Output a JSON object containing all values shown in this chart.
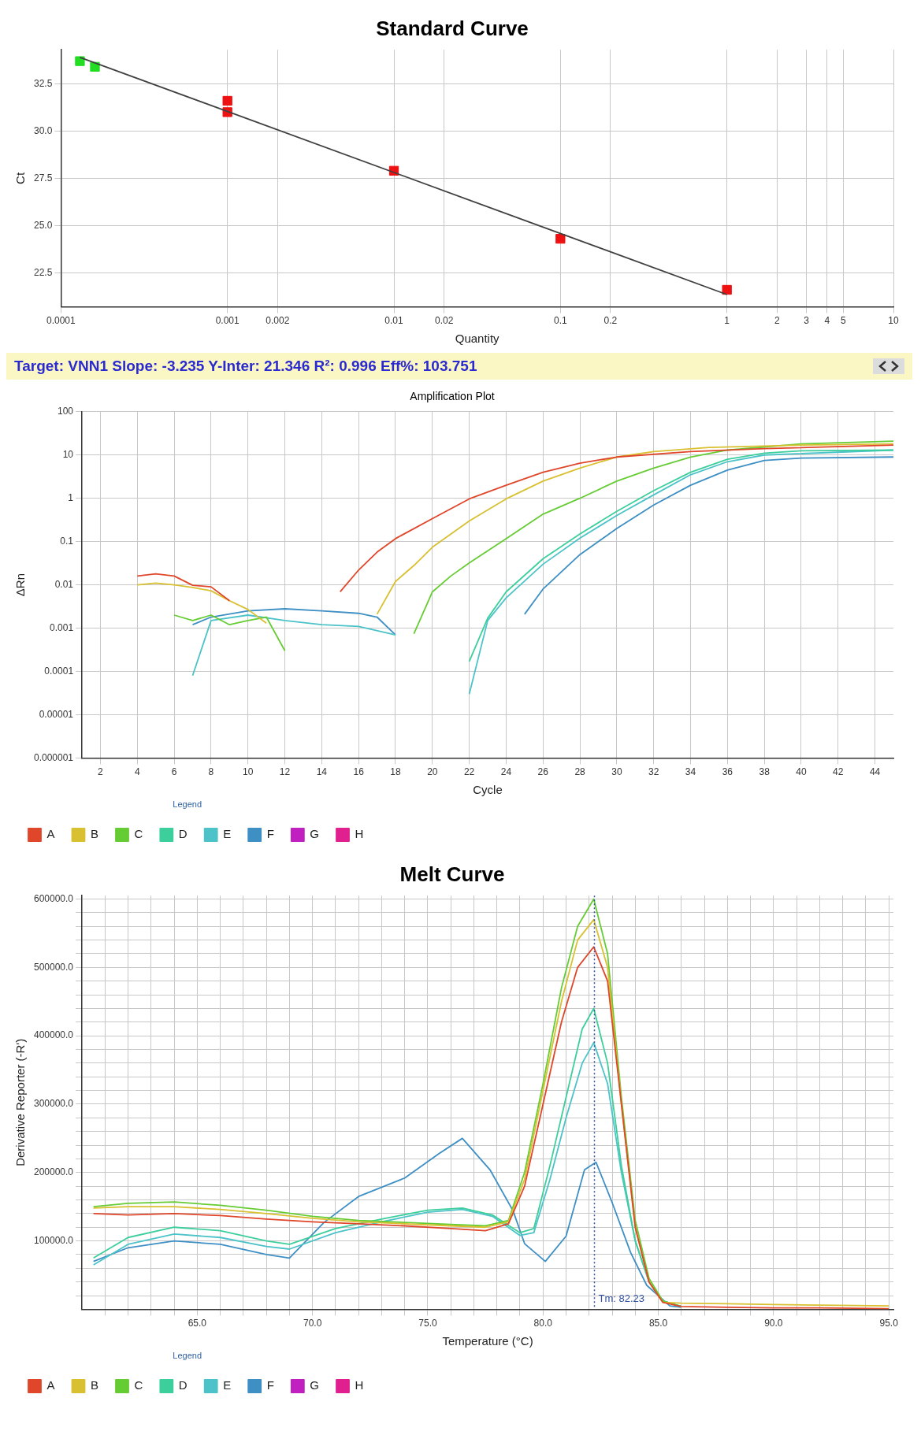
{
  "chart_data": [
    {
      "type": "scatter",
      "title": "Standard Curve",
      "xlabel": "Quantity",
      "ylabel": "Ct",
      "log": "x",
      "grid": true,
      "xlim": [
        0.0001,
        10
      ],
      "xticks": [
        0.0001,
        0.001,
        0.002,
        0.01,
        0.02,
        0.1,
        0.2,
        1,
        2,
        3,
        4,
        5,
        10
      ],
      "ylim": [
        20.7,
        34.3
      ],
      "yticks": [
        22.5,
        {
          "value": 25,
          "label": "25.0"
        },
        27.5,
        {
          "value": 30,
          "label": "30.0"
        },
        32.5
      ],
      "series": [
        {
          "type": "line",
          "color": "#404040",
          "x": [
            0.00013,
            1
          ],
          "values": [
            33.9,
            21.35
          ]
        },
        {
          "color": "#ee1111",
          "marker": "square",
          "x": [
            0.001,
            0.001,
            0.01,
            0.1,
            1
          ],
          "values": [
            31.6,
            31.0,
            27.9,
            24.3,
            21.6
          ]
        },
        {
          "color": "#22dd22",
          "marker": "square",
          "x": [
            0.00013,
            0.00016
          ],
          "values": [
            33.7,
            33.4
          ]
        }
      ],
      "annotations": [
        "Target: VNN1  Slope: -3.235  Y-Inter: 21.346  R²: 0.996  Eff%: 103.751"
      ]
    },
    {
      "type": "line",
      "title": "Amplification Plot",
      "xlabel": "Cycle",
      "ylabel": "ΔRn",
      "log": "y",
      "grid": true,
      "legend": "bottom left",
      "legend_title": "Legend",
      "xlim": [
        1,
        45
      ],
      "xticks": [
        2,
        4,
        6,
        8,
        10,
        12,
        14,
        16,
        18,
        20,
        22,
        24,
        26,
        28,
        30,
        32,
        34,
        36,
        38,
        40,
        42,
        44
      ],
      "ylim": [
        1e-06,
        100
      ],
      "yticks": [
        {
          "value": 1e-06,
          "label": "0.000001"
        },
        {
          "value": 1e-05,
          "label": "0.00001"
        },
        0.0001,
        0.001,
        0.01,
        0.1,
        1,
        10,
        100
      ],
      "series": [
        {
          "name": "A",
          "color": "#e0462a",
          "x": [
            4,
            5,
            6,
            7,
            8,
            9,
            10,
            15,
            16,
            17,
            18,
            20,
            22,
            24,
            26,
            28,
            30,
            34,
            38,
            45
          ],
          "values": [
            0.016,
            0.018,
            0.016,
            0.0098,
            0.009,
            0.0043,
            null,
            0.0069,
            0.022,
            0.057,
            0.117,
            0.34,
            0.97,
            2,
            4,
            6.5,
            9,
            12,
            14,
            17
          ]
        },
        {
          "name": "B",
          "color": "#d8c030",
          "x": [
            4,
            5,
            6,
            7,
            8,
            9,
            10,
            11,
            12,
            17,
            18,
            19,
            20,
            22,
            24,
            26,
            28,
            30,
            32,
            35,
            40,
            45
          ],
          "values": [
            0.01,
            0.011,
            0.01,
            0.0087,
            0.0073,
            0.0043,
            0.0027,
            0.0013,
            null,
            0.0021,
            0.012,
            0.028,
            0.074,
            0.3,
            0.97,
            2.5,
            5,
            9,
            12,
            15,
            17,
            18
          ]
        },
        {
          "name": "C",
          "color": "#66cc33",
          "x": [
            6,
            7,
            8,
            9,
            10,
            11,
            12,
            13,
            19,
            20,
            21,
            22,
            24,
            26,
            28,
            30,
            32,
            34,
            36,
            40,
            45
          ],
          "values": [
            0.002,
            0.0015,
            0.002,
            0.0012,
            0.0015,
            0.0018,
            0.0003,
            null,
            0.00074,
            0.0069,
            0.016,
            0.032,
            0.117,
            0.43,
            1,
            2.5,
            5,
            9,
            13,
            18,
            21
          ]
        },
        {
          "name": "D",
          "color": "#3ccf9c",
          "x": [
            22,
            23,
            24,
            26,
            28,
            30,
            32,
            34,
            36,
            38,
            40,
            45
          ],
          "values": [
            0.00017,
            0.0017,
            0.0069,
            0.04,
            0.15,
            0.5,
            1.5,
            4,
            8,
            11,
            12.5,
            13
          ]
        },
        {
          "name": "E",
          "color": "#4cc3c8",
          "x": [
            7,
            8,
            10,
            12,
            14,
            16,
            18,
            19,
            22,
            23,
            24,
            26,
            28,
            30,
            32,
            34,
            36,
            38,
            45
          ],
          "values": [
            8e-05,
            0.0015,
            0.002,
            0.0015,
            0.0012,
            0.0011,
            0.0007,
            null,
            3e-05,
            0.0015,
            0.005,
            0.03,
            0.12,
            0.4,
            1.2,
            3.5,
            7,
            10,
            13
          ]
        },
        {
          "name": "F",
          "color": "#3d8fc4",
          "x": [
            7,
            8,
            10,
            12,
            14,
            16,
            17,
            18,
            19,
            25,
            26,
            28,
            30,
            32,
            34,
            36,
            38,
            40,
            45
          ],
          "values": [
            0.0012,
            0.0018,
            0.0025,
            0.0028,
            0.0025,
            0.0022,
            0.0018,
            0.0007,
            null,
            0.0021,
            0.008,
            0.05,
            0.2,
            0.7,
            2,
            4.5,
            7.5,
            8.5,
            9
          ]
        },
        {
          "name": "G",
          "color": "#c020c0"
        },
        {
          "name": "H",
          "color": "#e0208f"
        }
      ]
    },
    {
      "type": "line",
      "title": "Melt Curve",
      "xlabel": "Temperature (°C)",
      "ylabel": "Derivative Reporter (-R')",
      "grid": true,
      "legend": "bottom left",
      "legend_title": "Legend",
      "xlim": [
        60,
        95.2
      ],
      "xticks": [
        {
          "value": 61,
          "label": null
        },
        {
          "value": 62,
          "label": null
        },
        {
          "value": 63,
          "label": null
        },
        {
          "value": 64,
          "label": null
        },
        {
          "value": 65,
          "label": "65.0"
        },
        {
          "value": 66,
          "label": null
        },
        {
          "value": 67,
          "label": null
        },
        {
          "value": 68,
          "label": null
        },
        {
          "value": 69,
          "label": null
        },
        {
          "value": 70,
          "label": "70.0"
        },
        {
          "value": 71,
          "label": null
        },
        {
          "value": 72,
          "label": null
        },
        {
          "value": 73,
          "label": null
        },
        {
          "value": 74,
          "label": null
        },
        {
          "value": 75,
          "label": "75.0"
        },
        {
          "value": 76,
          "label": null
        },
        {
          "value": 77,
          "label": null
        },
        {
          "value": 78,
          "label": null
        },
        {
          "value": 79,
          "label": null
        },
        {
          "value": 80,
          "label": "80.0"
        },
        {
          "value": 81,
          "label": null
        },
        {
          "value": 82,
          "label": null
        },
        {
          "value": 83,
          "label": null
        },
        {
          "value": 84,
          "label": null
        },
        {
          "value": 85,
          "label": "85.0"
        },
        {
          "value": 86,
          "label": null
        },
        {
          "value": 87,
          "label": null
        },
        {
          "value": 88,
          "label": null
        },
        {
          "value": 89,
          "label": null
        },
        {
          "value": 90,
          "label": "90.0"
        },
        {
          "value": 91,
          "label": null
        },
        {
          "value": 92,
          "label": null
        },
        {
          "value": 93,
          "label": null
        },
        {
          "value": 94,
          "label": null
        },
        {
          "value": 95,
          "label": "95.0"
        }
      ],
      "ylim": [
        0,
        605000
      ],
      "yticks": [
        {
          "value": 20000,
          "label": null
        },
        {
          "value": 40000,
          "label": null
        },
        {
          "value": 60000,
          "label": null
        },
        {
          "value": 80000,
          "label": null
        },
        {
          "value": 100000,
          "label": "100000.0"
        },
        {
          "value": 120000,
          "label": null
        },
        {
          "value": 140000,
          "label": null
        },
        {
          "value": 160000,
          "label": null
        },
        {
          "value": 180000,
          "label": null
        },
        {
          "value": 200000,
          "label": "200000.0"
        },
        {
          "value": 220000,
          "label": null
        },
        {
          "value": 240000,
          "label": null
        },
        {
          "value": 260000,
          "label": null
        },
        {
          "value": 280000,
          "label": null
        },
        {
          "value": 300000,
          "label": "300000.0"
        },
        {
          "value": 320000,
          "label": null
        },
        {
          "value": 340000,
          "label": null
        },
        {
          "value": 360000,
          "label": null
        },
        {
          "value": 380000,
          "label": null
        },
        {
          "value": 400000,
          "label": "400000.0"
        },
        {
          "value": 420000,
          "label": null
        },
        {
          "value": 440000,
          "label": null
        },
        {
          "value": 460000,
          "label": null
        },
        {
          "value": 480000,
          "label": null
        },
        {
          "value": 500000,
          "label": "500000.0"
        },
        {
          "value": 520000,
          "label": null
        },
        {
          "value": 540000,
          "label": null
        },
        {
          "value": 560000,
          "label": null
        },
        {
          "value": 580000,
          "label": null
        },
        {
          "value": 600000,
          "label": "600000.0"
        }
      ],
      "ref_lines": [
        {
          "axis": "x",
          "value": 82.23,
          "label": "Tm: 82.23",
          "color": "#3050a0",
          "line_style": "dotted"
        }
      ],
      "series": [
        {
          "name": "A",
          "color": "#e0462a",
          "x": [
            60.5,
            62,
            64,
            66,
            68,
            70,
            72,
            74,
            76,
            77.5,
            78.5,
            79.2,
            80,
            80.8,
            81.5,
            82.2,
            82.8,
            83.4,
            84,
            84.6,
            85.2,
            86,
            88,
            90,
            92,
            95
          ],
          "values": [
            140000,
            138000,
            140000,
            137000,
            132000,
            128000,
            125000,
            122000,
            118000,
            115000,
            125000,
            180000,
            300000,
            420000,
            500000,
            530000,
            480000,
            300000,
            120000,
            40000,
            10000,
            4000,
            3000,
            2000,
            2000,
            1000
          ]
        },
        {
          "name": "B",
          "color": "#d8c030",
          "x": [
            60.5,
            62,
            64,
            66,
            68,
            70,
            72,
            74,
            76,
            77.5,
            78.5,
            79.2,
            80,
            80.8,
            81.5,
            82.2,
            82.8,
            83.4,
            84,
            84.6,
            85.2,
            86,
            88,
            90,
            92,
            95
          ],
          "values": [
            148000,
            150000,
            150000,
            146000,
            140000,
            133000,
            128000,
            125000,
            122000,
            120000,
            128000,
            190000,
            320000,
            450000,
            540000,
            570000,
            500000,
            300000,
            120000,
            40000,
            10000,
            9000,
            8000,
            7000,
            6000,
            5000
          ]
        },
        {
          "name": "C",
          "color": "#66cc33",
          "x": [
            60.5,
            62,
            64,
            66,
            68,
            70,
            72,
            74,
            76,
            77.5,
            78.5,
            79.2,
            80,
            80.8,
            81.5,
            82.2,
            82.8,
            83.4,
            84,
            84.6,
            85.2,
            86
          ],
          "values": [
            150000,
            155000,
            157000,
            152000,
            145000,
            136000,
            130000,
            127000,
            124000,
            122000,
            130000,
            200000,
            330000,
            470000,
            560000,
            600000,
            520000,
            310000,
            130000,
            45000,
            12000,
            4000
          ]
        },
        {
          "name": "D",
          "color": "#3ccf9c",
          "x": [
            60.5,
            62,
            64,
            66,
            68,
            69,
            71,
            73,
            75,
            76.5,
            77.8,
            79,
            79.6,
            80.3,
            81,
            81.7,
            82.2,
            82.8,
            83.4,
            84,
            84.6,
            85.2,
            86
          ],
          "values": [
            75000,
            105000,
            120000,
            115000,
            100000,
            95000,
            118000,
            132000,
            145000,
            148000,
            138000,
            112000,
            118000,
            210000,
            310000,
            410000,
            440000,
            360000,
            210000,
            100000,
            40000,
            12000,
            4000
          ]
        },
        {
          "name": "E",
          "color": "#4cc3c8",
          "x": [
            60.5,
            62,
            64,
            66,
            68,
            69,
            71,
            73,
            75,
            76.5,
            77.8,
            79,
            79.6,
            80.3,
            81,
            81.7,
            82.2,
            82.8,
            83.4,
            84,
            84.6,
            85.2,
            86
          ],
          "values": [
            65000,
            95000,
            110000,
            105000,
            92000,
            88000,
            112000,
            128000,
            142000,
            146000,
            136000,
            108000,
            112000,
            190000,
            280000,
            360000,
            390000,
            330000,
            200000,
            100000,
            40000,
            12000,
            4000
          ]
        },
        {
          "name": "F",
          "color": "#3d8fc4",
          "x": [
            60.5,
            62,
            64,
            66,
            68,
            69,
            70.5,
            72,
            74,
            75.5,
            76.5,
            77.7,
            78.7,
            79.2,
            80.1,
            81,
            81.8,
            82.3,
            83,
            83.8,
            84.5,
            85.5,
            86
          ],
          "values": [
            70000,
            90000,
            100000,
            95000,
            80000,
            75000,
            127000,
            165000,
            192000,
            228000,
            250000,
            204000,
            144000,
            96000,
            70000,
            107000,
            204000,
            215000,
            156000,
            83000,
            35000,
            5000,
            3000
          ]
        },
        {
          "name": "G",
          "color": "#c020c0"
        },
        {
          "name": "H",
          "color": "#e0208f"
        }
      ]
    }
  ]
}
